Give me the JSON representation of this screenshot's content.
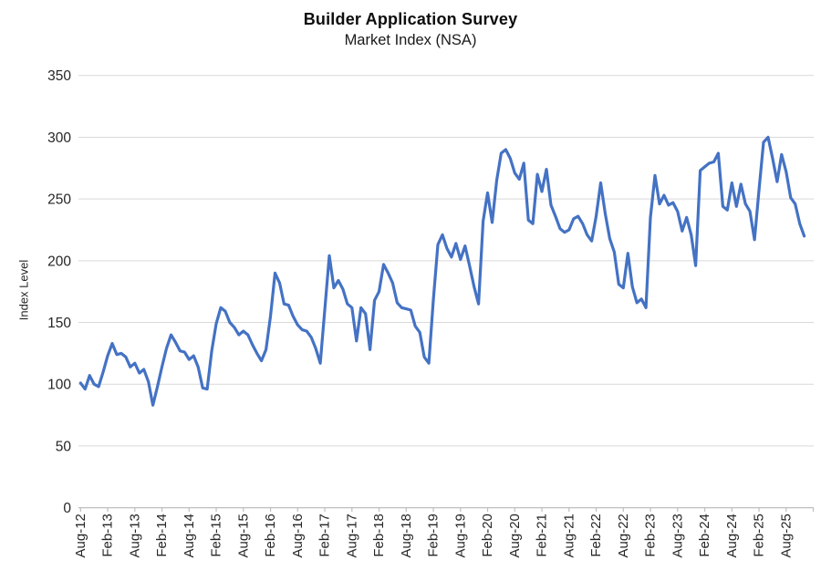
{
  "chart_data": {
    "type": "line",
    "title": "Builder Application Survey",
    "subtitle": "Market Index (NSA)",
    "ylabel": "Index Level",
    "xlabel": "",
    "ylim": [
      0,
      350
    ],
    "ytick_step": 50,
    "yticks": [
      0,
      50,
      100,
      150,
      200,
      250,
      300,
      350
    ],
    "grid": "horizontal",
    "legend": "none",
    "series_name": "Market Index (NSA)",
    "line_color": "#4472C4",
    "gridline_color": "#D9D9D9",
    "axis_color": "#BFBFBF",
    "text_color": "#262626",
    "start_month": "Aug-2012",
    "end_month": "Dec-2025",
    "x_tick_interval_months": 6,
    "x_tick_labels": [
      "Aug-12",
      "Feb-13",
      "Aug-13",
      "Feb-14",
      "Aug-14",
      "Feb-15",
      "Aug-15",
      "Feb-16",
      "Aug-16",
      "Feb-17",
      "Aug-17",
      "Feb-18",
      "Aug-18",
      "Feb-19",
      "Aug-19",
      "Feb-20",
      "Aug-20",
      "Feb-21",
      "Aug-21",
      "Feb-22",
      "Aug-22",
      "Feb-23",
      "Aug-23",
      "Feb-24",
      "Aug-24",
      "Feb-25",
      "Aug-25"
    ],
    "values": [
      101,
      96,
      107,
      100,
      98,
      110,
      123,
      133,
      124,
      125,
      122,
      114,
      117,
      109,
      112,
      102,
      83,
      98,
      114,
      129,
      140,
      134,
      127,
      126,
      120,
      123,
      114,
      97,
      96,
      127,
      149,
      162,
      159,
      150,
      146,
      140,
      143,
      140,
      132,
      125,
      119,
      128,
      155,
      190,
      182,
      165,
      164,
      155,
      148,
      144,
      143,
      138,
      129,
      117,
      160,
      204,
      178,
      184,
      177,
      165,
      162,
      135,
      162,
      157,
      128,
      168,
      175,
      197,
      190,
      182,
      166,
      162,
      161,
      160,
      147,
      142,
      122,
      117,
      168,
      213,
      221,
      210,
      203,
      214,
      201,
      212,
      196,
      179,
      165,
      232,
      255,
      231,
      265,
      287,
      290,
      283,
      271,
      266,
      279,
      233,
      230,
      270,
      256,
      274,
      245,
      236,
      226,
      223,
      225,
      234,
      236,
      230,
      221,
      216,
      236,
      263,
      238,
      218,
      207,
      181,
      178,
      206,
      179,
      166,
      169,
      162,
      235,
      269,
      246,
      253,
      245,
      247,
      240,
      224,
      235,
      221,
      196,
      273,
      276,
      279,
      280,
      287,
      244,
      241,
      263,
      244,
      262,
      246,
      240,
      217,
      257,
      296,
      300,
      283,
      264,
      286,
      272,
      251,
      246,
      230,
      220
    ]
  }
}
